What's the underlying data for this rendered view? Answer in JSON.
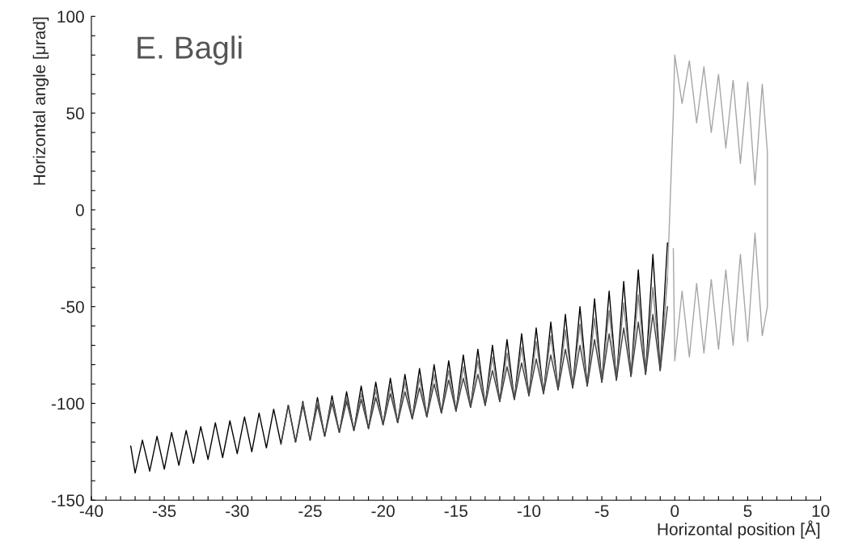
{
  "chart_data": {
    "type": "line",
    "xlabel": "Horizontal position [Å]",
    "ylabel": "Horizontal angle [μrad]",
    "annotations": [
      "E. Bagli"
    ],
    "xlim": [
      -40,
      10
    ],
    "ylim": [
      -150,
      100
    ],
    "xticks": [
      -40,
      {
        "value": -39,
        "label": null
      },
      {
        "value": -38,
        "label": null
      },
      {
        "value": -37,
        "label": null
      },
      {
        "value": -36,
        "label": null
      },
      -35,
      {
        "value": -34,
        "label": null
      },
      {
        "value": -33,
        "label": null
      },
      {
        "value": -32,
        "label": null
      },
      {
        "value": -31,
        "label": null
      },
      -30,
      {
        "value": -29,
        "label": null
      },
      {
        "value": -28,
        "label": null
      },
      {
        "value": -27,
        "label": null
      },
      {
        "value": -26,
        "label": null
      },
      -25,
      {
        "value": -24,
        "label": null
      },
      {
        "value": -23,
        "label": null
      },
      {
        "value": -22,
        "label": null
      },
      {
        "value": -21,
        "label": null
      },
      -20,
      {
        "value": -19,
        "label": null
      },
      {
        "value": -18,
        "label": null
      },
      {
        "value": -17,
        "label": null
      },
      {
        "value": -16,
        "label": null
      },
      -15,
      {
        "value": -14,
        "label": null
      },
      {
        "value": -13,
        "label": null
      },
      {
        "value": -12,
        "label": null
      },
      {
        "value": -11,
        "label": null
      },
      -10,
      {
        "value": -9,
        "label": null
      },
      {
        "value": -8,
        "label": null
      },
      {
        "value": -7,
        "label": null
      },
      {
        "value": -6,
        "label": null
      },
      -5,
      {
        "value": -4,
        "label": null
      },
      {
        "value": -3,
        "label": null
      },
      {
        "value": -2,
        "label": null
      },
      {
        "value": -1,
        "label": null
      },
      0,
      {
        "value": 1,
        "label": null
      },
      {
        "value": 2,
        "label": null
      },
      {
        "value": 3,
        "label": null
      },
      {
        "value": 4,
        "label": null
      },
      5,
      {
        "value": 6,
        "label": null
      },
      {
        "value": 7,
        "label": null
      },
      {
        "value": 8,
        "label": null
      },
      {
        "value": 9,
        "label": null
      },
      10
    ],
    "yticks": [
      -150,
      {
        "value": -140,
        "label": null
      },
      {
        "value": -130,
        "label": null
      },
      {
        "value": -120,
        "label": null
      },
      {
        "value": -110,
        "label": null
      },
      -100,
      {
        "value": -90,
        "label": null
      },
      {
        "value": -80,
        "label": null
      },
      {
        "value": -70,
        "label": null
      },
      {
        "value": -60,
        "label": null
      },
      -50,
      {
        "value": -40,
        "label": null
      },
      {
        "value": -30,
        "label": null
      },
      {
        "value": -20,
        "label": null
      },
      {
        "value": -10,
        "label": null
      },
      0,
      {
        "value": 10,
        "label": null
      },
      {
        "value": 20,
        "label": null
      },
      {
        "value": 30,
        "label": null
      },
      {
        "value": 40,
        "label": null
      },
      50,
      {
        "value": 60,
        "label": null
      },
      {
        "value": 70,
        "label": null
      },
      {
        "value": 80,
        "label": null
      },
      {
        "value": 90,
        "label": null
      },
      100
    ],
    "grid": false,
    "legend": false,
    "marker": "none",
    "line_style": "solid",
    "series": [
      {
        "color": "#000000",
        "x": [
          -37.3,
          -37,
          -36.5,
          -36,
          -35.5,
          -35,
          -34.5,
          -34,
          -33.5,
          -33,
          -32.5,
          -32,
          -31.5,
          -31,
          -30.5,
          -30,
          -29.5,
          -29,
          -28.5,
          -28,
          -27.5,
          -27,
          -26.5,
          -26,
          -25.5,
          -25,
          -24.5,
          -24,
          -23.5,
          -23,
          -22.5,
          -22,
          -21.5,
          -21,
          -20.5,
          -20,
          -19.5,
          -19,
          -18.5,
          -18,
          -17.5,
          -17,
          -16.5,
          -16,
          -15.5,
          -15,
          -14.5,
          -14,
          -13.5,
          -13,
          -12.5,
          -12,
          -11.5,
          -11,
          -10.5,
          -10,
          -9.5,
          -9,
          -8.5,
          -8,
          -7.5,
          -7,
          -6.5,
          -6,
          -5.5,
          -5,
          -4.5,
          -4,
          -3.5,
          -3,
          -2.5,
          -2,
          -1.5,
          -1,
          -0.5
        ],
        "values": [
          -122,
          -136,
          -119,
          -135,
          -117,
          -134,
          -115,
          -132,
          -114,
          -131,
          -112,
          -129,
          -110,
          -128,
          -109,
          -126,
          -107,
          -125,
          -105,
          -123,
          -103,
          -121,
          -101,
          -120,
          -99,
          -119,
          -97,
          -117,
          -96,
          -115,
          -94,
          -114,
          -91,
          -113,
          -89,
          -111,
          -87,
          -110,
          -85,
          -108,
          -82,
          -107,
          -80,
          -105,
          -78,
          -104,
          -75,
          -102,
          -72,
          -101,
          -70,
          -99,
          -67,
          -98,
          -64,
          -96,
          -61,
          -95,
          -58,
          -93,
          -54,
          -92,
          -50,
          -91,
          -46,
          -89,
          -42,
          -88,
          -37,
          -86,
          -31,
          -85,
          -23,
          -83,
          -17
        ]
      },
      {
        "color": "#808080",
        "x": [
          -27,
          -26.5,
          -26,
          -25.5,
          -25,
          -24.5,
          -24,
          -23.5,
          -23,
          -22.5,
          -22,
          -21.5,
          -21,
          -20.5,
          -20,
          -19.5,
          -19,
          -18.5,
          -18,
          -17.5,
          -17,
          -16.5,
          -16,
          -15.5,
          -15,
          -14.5,
          -14,
          -13.5,
          -13,
          -12.5,
          -12,
          -11.5,
          -11,
          -10.5,
          -10,
          -9.5,
          -9,
          -8.5,
          -8,
          -7.5,
          -7,
          -6.5,
          -6,
          -5.5,
          -5,
          -4.5,
          -4,
          -3.5,
          -3,
          -2.5,
          -2,
          -1.5,
          -1,
          -0.5
        ],
        "values": [
          -121,
          -101,
          -120,
          -100,
          -119,
          -99,
          -117,
          -98,
          -115,
          -97,
          -114,
          -95,
          -113,
          -93,
          -111,
          -91,
          -110,
          -89,
          -108,
          -87,
          -107,
          -85,
          -105,
          -83,
          -104,
          -81,
          -102,
          -78,
          -101,
          -76,
          -99,
          -74,
          -98,
          -71,
          -96,
          -68,
          -95,
          -65,
          -93,
          -62,
          -92,
          -59,
          -91,
          -56,
          -89,
          -52,
          -88,
          -48,
          -86,
          -44,
          -85,
          -40,
          -83,
          -35
        ]
      },
      {
        "color": "#404040",
        "x": [
          -27,
          -26.5,
          -26,
          -25.5,
          -25,
          -24.5,
          -24,
          -23.5,
          -23,
          -22.5,
          -22,
          -21.5,
          -21,
          -20.5,
          -20,
          -19.5,
          -19,
          -18.5,
          -18,
          -17.5,
          -17,
          -16.5,
          -16,
          -15.5,
          -15,
          -14.5,
          -14,
          -13.5,
          -13,
          -12.5,
          -12,
          -11.5,
          -11,
          -10.5,
          -10,
          -9.5,
          -9,
          -8.5,
          -8,
          -7.5,
          -7,
          -6.5,
          -6,
          -5.5,
          -5,
          -4.5,
          -4,
          -3.5,
          -3,
          -2.5,
          -2,
          -1.5,
          -1,
          -0.5
        ],
        "values": [
          -121,
          -101,
          -120,
          -101,
          -119,
          -101,
          -117,
          -100,
          -115,
          -99,
          -114,
          -98,
          -113,
          -97,
          -111,
          -95,
          -110,
          -94,
          -108,
          -92,
          -107,
          -90,
          -105,
          -88,
          -104,
          -87,
          -102,
          -85,
          -101,
          -83,
          -99,
          -81,
          -98,
          -79,
          -96,
          -77,
          -95,
          -75,
          -93,
          -72,
          -92,
          -70,
          -91,
          -67,
          -89,
          -64,
          -88,
          -61,
          -86,
          -58,
          -85,
          -54,
          -83,
          -50
        ]
      },
      {
        "color": "#a6a6a6",
        "x": [
          -0.5,
          -0.1,
          0,
          0.5,
          1,
          1.5,
          2,
          2.5,
          3,
          3.5,
          4,
          4.5,
          5,
          5.5,
          6,
          6.35,
          6.35,
          6,
          5.5,
          5,
          4.5,
          4,
          3.5,
          3,
          2.5,
          2,
          1.5,
          1,
          0.5,
          0,
          -0.1
        ],
        "values": [
          -35,
          50,
          80,
          55,
          77,
          45,
          74,
          40,
          70,
          32,
          67,
          24,
          66,
          13,
          65,
          30,
          -50,
          -65,
          -12,
          -68,
          -23,
          -70,
          -31,
          -72,
          -36,
          -74,
          -38,
          -76,
          -42,
          -78,
          -20
        ]
      }
    ]
  }
}
